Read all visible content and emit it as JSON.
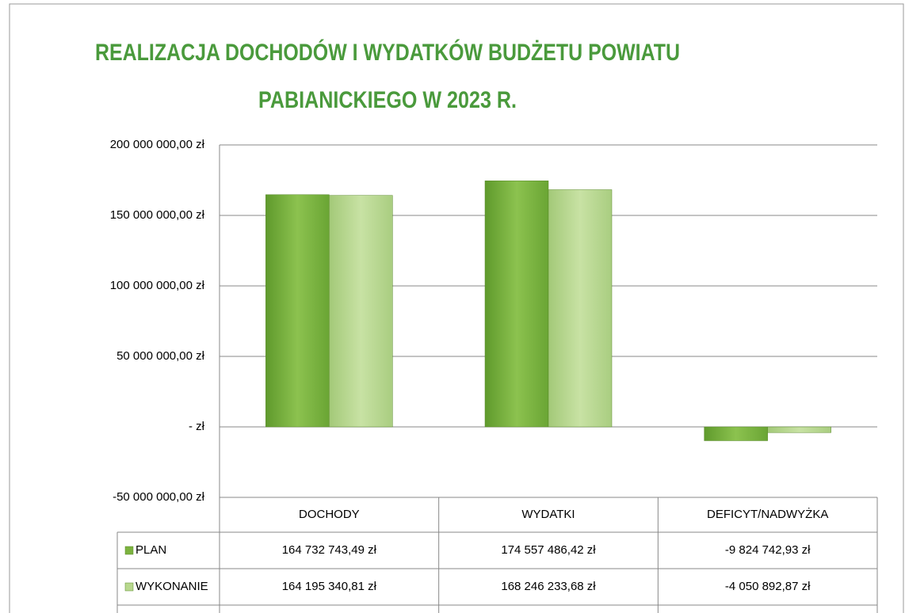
{
  "chart_data": {
    "type": "bar",
    "title": [
      "REALIZACJA DOCHODÓW I WYDATKÓW BUDŻETU POWIATU",
      "PABIANICKIEGO W 2023 R."
    ],
    "categories": [
      "DOCHODY",
      "WYDATKI",
      "DEFICYT/NADWYŻKA"
    ],
    "series": [
      {
        "name": "PLAN",
        "color": "#7cb340",
        "values": [
          164732743.49,
          174557486.42,
          -9824742.93
        ],
        "value_labels": [
          "164 732 743,49 zł",
          "174 557 486,42 zł",
          "-9 824 742,93 zł"
        ]
      },
      {
        "name": "WYKONANIE",
        "color": "#b8d88e",
        "values": [
          164195340.81,
          168246233.68,
          -4050892.87
        ],
        "value_labels": [
          "164 195 340,81 zł",
          "168 246 233,68 zł",
          "-4 050 892,87 zł"
        ]
      }
    ],
    "ylim": [
      -50000000,
      200000000
    ],
    "yticks": [
      {
        "value": -50000000,
        "label": "-50 000 000,00 zł"
      },
      {
        "value": 0,
        "label": "-  zł"
      },
      {
        "value": 50000000,
        "label": "50 000 000,00 zł"
      },
      {
        "value": 100000000,
        "label": "100 000 000,00 zł"
      },
      {
        "value": 150000000,
        "label": "150 000 000,00 zł"
      },
      {
        "value": 200000000,
        "label": "200 000 000,00 zł"
      }
    ],
    "grid": true
  }
}
